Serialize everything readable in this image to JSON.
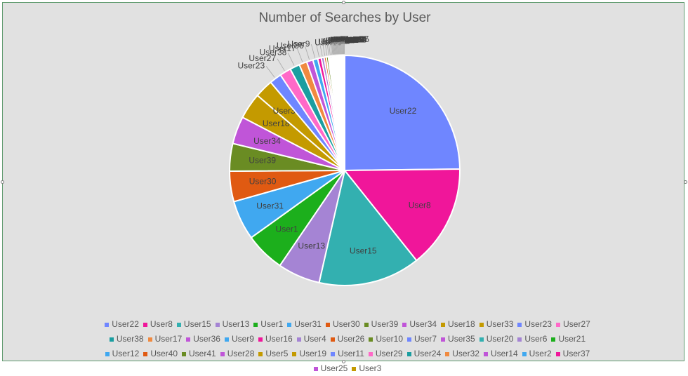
{
  "chart_data": {
    "type": "pie",
    "title": "Number of Searches by User",
    "categories": [
      "User22",
      "User8",
      "User15",
      "User13",
      "User1",
      "User31",
      "User30",
      "User39",
      "User34",
      "User18",
      "User33",
      "User23",
      "User27",
      "User38",
      "User17",
      "User36",
      "User9",
      "User16",
      "User4",
      "User26",
      "User10",
      "User7",
      "User35",
      "User20",
      "User6",
      "User21",
      "User12",
      "User40",
      "User41",
      "User28",
      "User5",
      "User19",
      "User11",
      "User29",
      "User24",
      "User32",
      "User14",
      "User2",
      "User37",
      "User25",
      "User3"
    ],
    "values": [
      250,
      146,
      144,
      60,
      56,
      56,
      43,
      39,
      39,
      37,
      26,
      17,
      16,
      14,
      11,
      9,
      7,
      5,
      4,
      3,
      3,
      2,
      2,
      2,
      1,
      1,
      1,
      1,
      1,
      1,
      1,
      1,
      1,
      1,
      1,
      1,
      1,
      1,
      1,
      1,
      1
    ],
    "colors": [
      "#6f86ff",
      "#f0169a",
      "#33b0b0",
      "#a584d4",
      "#1caf1c",
      "#40a8f0",
      "#e05a12",
      "#6a8c23",
      "#c055d8",
      "#c49a00",
      "#c49a00",
      "#6f86ff",
      "#ff69c8",
      "#1a9ea0",
      "#f08a40",
      "#c055d8",
      "#40a8f0",
      "#f0169a",
      "#a584d4",
      "#e05a12",
      "#6a8c23",
      "#6f86ff",
      "#c055d8",
      "#33b0b0",
      "#a584d4",
      "#1caf1c",
      "#40a8f0",
      "#e05a12",
      "#6a8c23",
      "#c055d8",
      "#c49a00",
      "#c49a00",
      "#6f86ff",
      "#ff69c8",
      "#1a9ea0",
      "#f08a40",
      "#c055d8",
      "#40a8f0",
      "#f0169a",
      "#c055d8",
      "#c49a00"
    ],
    "legend": "bottom"
  }
}
